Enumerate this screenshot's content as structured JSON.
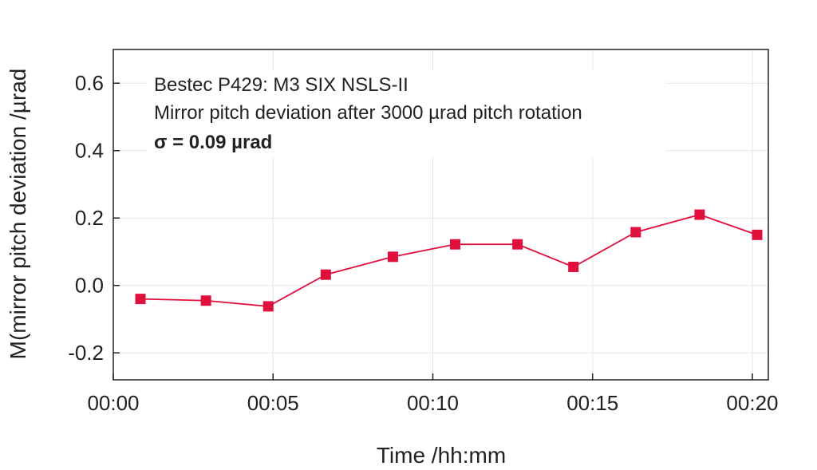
{
  "chart_data": {
    "type": "line",
    "xlabel": "Time /hh:mm",
    "ylabel": "M(mirror pitch deviation /µrad",
    "xticks": [
      "00:00",
      "00:05",
      "00:10",
      "00:15",
      "00:20"
    ],
    "xlim_minutes": [
      0,
      20.5
    ],
    "ylim": [
      -0.28,
      0.7
    ],
    "yticks": [
      "-0.2",
      "0.0",
      "0.2",
      "0.4",
      "0.6"
    ],
    "grid": true,
    "annotations": [
      "Bestec P429: M3 SIX NSLS-II",
      "Mirror pitch deviation after 3000 µrad pitch rotation",
      "σ = 0.09 µrad"
    ],
    "series": [
      {
        "color": "#e0103c",
        "marker": "square",
        "x_minutes": [
          0.85,
          2.9,
          4.85,
          6.65,
          8.75,
          10.7,
          12.65,
          14.4,
          16.35,
          18.35,
          20.15
        ],
        "values": [
          -0.04,
          -0.045,
          -0.062,
          0.032,
          0.085,
          0.122,
          0.122,
          0.055,
          0.158,
          0.21,
          0.15
        ]
      }
    ]
  }
}
